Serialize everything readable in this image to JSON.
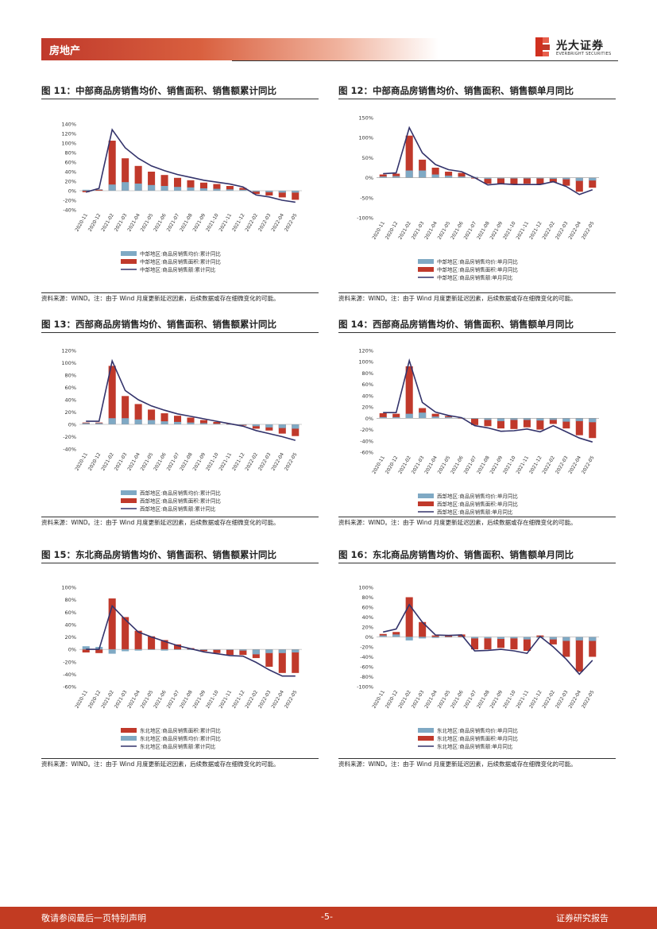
{
  "header": {
    "section": "房地产",
    "brand_cn": "光大证券",
    "brand_en": "EVERBRIGHT SECURITIES"
  },
  "colors": {
    "bar_a": "#7fa9c4",
    "bar_b": "#c0392b",
    "line": "#33336b",
    "footer": "#c23b22"
  },
  "footer": {
    "left": "敬请参阅最后一页特别声明",
    "page": "-5-",
    "right": "证券研究报告"
  },
  "source_note": "资料来源：WIND。注：由于 Wind 月度更新延迟因素，后续数据或存在细微变化的可能。",
  "figures": [
    {
      "title": "图 11：中部商品房销售均价、销售面积、销售额累计同比",
      "chart_data": {
        "type": "bar",
        "categories": [
          "2020-11",
          "2020-12",
          "2021-02",
          "2021-03",
          "2021-04",
          "2021-05",
          "2021-06",
          "2021-07",
          "2021-08",
          "2021-09",
          "2021-10",
          "2021-11",
          "2021-12",
          "2022-02",
          "2022-03",
          "2022-04",
          "2022-05"
        ],
        "ylim": [
          -40,
          140
        ],
        "ticks": [
          "140%",
          "120%",
          "100%",
          "80%",
          "60%",
          "40%",
          "20%",
          "0%",
          "-20%",
          "-40%"
        ],
        "series": [
          {
            "name": "中部地区:商品房销售均价:累计同比",
            "kind": "bar",
            "values": [
              2,
              3,
              13,
              18,
              15,
              12,
              10,
              8,
              7,
              5,
              4,
              3,
              2,
              -2,
              -3,
              -4,
              -4
            ]
          },
          {
            "name": "中部地区:商品房销售面积:累计同比",
            "kind": "bar",
            "values": [
              -3,
              2,
              105,
              68,
              52,
              40,
              33,
              27,
              22,
              17,
              14,
              10,
              6,
              -7,
              -10,
              -14,
              -19
            ]
          },
          {
            "name": "中部地区:商品房销售额:累计同比",
            "kind": "line",
            "values": [
              -3,
              5,
              128,
              90,
              68,
              52,
              42,
              34,
              28,
              22,
              18,
              14,
              8,
              -9,
              -13,
              -20,
              -24
            ]
          }
        ]
      }
    },
    {
      "title": "图 12：中部商品房销售均价、销售面积、销售额单月同比",
      "chart_data": {
        "type": "bar",
        "categories": [
          "2020-11",
          "2020-12",
          "2021-02",
          "2021-03",
          "2021-04",
          "2021-05",
          "2021-06",
          "2021-07",
          "2021-08",
          "2021-09",
          "2021-10",
          "2021-11",
          "2021-12",
          "2022-02",
          "2022-03",
          "2022-04",
          "2022-05"
        ],
        "ylim": [
          -100,
          150
        ],
        "ticks": [
          "150%",
          "100%",
          "50%",
          "0%",
          "-50%",
          "-100%"
        ],
        "series": [
          {
            "name": "中部地区:商品房销售均价:单月同比",
            "kind": "bar",
            "values": [
              3,
              4,
              18,
              18,
              8,
              5,
              3,
              2,
              -3,
              -2,
              -2,
              -2,
              -2,
              -3,
              -4,
              -8,
              -7
            ]
          },
          {
            "name": "中部地区:商品房销售面积:单月同比",
            "kind": "bar",
            "values": [
              8,
              10,
              105,
              45,
              25,
              15,
              12,
              -2,
              -15,
              -15,
              -17,
              -15,
              -17,
              -12,
              -20,
              -35,
              -25
            ]
          },
          {
            "name": "中部地区:商品房销售额:单月同比",
            "kind": "line",
            "values": [
              10,
              12,
              125,
              62,
              33,
              20,
              15,
              0,
              -18,
              -15,
              -17,
              -17,
              -17,
              -10,
              -22,
              -42,
              -30
            ]
          }
        ]
      }
    },
    {
      "title": "图 13：西部商品房销售均价、销售面积、销售额累计同比",
      "chart_data": {
        "type": "bar",
        "categories": [
          "2020-11",
          "2020-12",
          "2021-02",
          "2021-03",
          "2021-04",
          "2021-05",
          "2021-06",
          "2021-07",
          "2021-08",
          "2021-09",
          "2021-10",
          "2021-11",
          "2021-12",
          "2022-02",
          "2022-03",
          "2022-04",
          "2022-05"
        ],
        "ylim": [
          -40,
          120
        ],
        "ticks": [
          "120%",
          "100%",
          "80%",
          "60%",
          "40%",
          "20%",
          "0%",
          "-20%",
          "-40%"
        ],
        "series": [
          {
            "name": "西部地区:商品房销售均价:累计同比",
            "kind": "bar",
            "values": [
              2,
              2,
              10,
              10,
              8,
              7,
              5,
              4,
              3,
              2,
              1,
              0,
              -1,
              -3,
              -5,
              -6,
              -7
            ]
          },
          {
            "name": "西部地区:商品房销售面积:累计同比",
            "kind": "bar",
            "values": [
              3,
              3,
              95,
              46,
              33,
              24,
              18,
              14,
              11,
              7,
              4,
              1,
              -2,
              -7,
              -10,
              -15,
              -19
            ]
          },
          {
            "name": "西部地区:商品房销售额:累计同比",
            "kind": "line",
            "values": [
              5,
              5,
              103,
              55,
              40,
              30,
              23,
              17,
              13,
              9,
              5,
              1,
              -3,
              -10,
              -15,
              -20,
              -26
            ]
          }
        ]
      }
    },
    {
      "title": "图 14：西部商品房销售均价、销售面积、销售额单月同比",
      "chart_data": {
        "type": "bar",
        "categories": [
          "2020-11",
          "2020-12",
          "2021-02",
          "2021-03",
          "2021-04",
          "2021-05",
          "2021-06",
          "2021-07",
          "2021-08",
          "2021-09",
          "2021-10",
          "2021-11",
          "2021-12",
          "2022-02",
          "2022-03",
          "2022-04",
          "2022-05"
        ],
        "ylim": [
          -60,
          120
        ],
        "ticks": [
          "120%",
          "100%",
          "80%",
          "60%",
          "40%",
          "20%",
          "0%",
          "-20%",
          "-40%",
          "-60%"
        ],
        "series": [
          {
            "name": "西部地区:商品房销售均价:单月同比",
            "kind": "bar",
            "values": [
              2,
              2,
              8,
              10,
              3,
              2,
              1,
              -1,
              -3,
              -5,
              -3,
              -3,
              -4,
              -3,
              -6,
              -5,
              -7
            ]
          },
          {
            "name": "西部地区:商品房销售面积:单月同比",
            "kind": "bar",
            "values": [
              9,
              8,
              92,
              18,
              8,
              4,
              0,
              -12,
              -14,
              -18,
              -19,
              -16,
              -20,
              -10,
              -18,
              -30,
              -35
            ]
          },
          {
            "name": "西部地区:商品房销售额:单月同比",
            "kind": "line",
            "values": [
              10,
              10,
              102,
              28,
              11,
              5,
              1,
              -13,
              -17,
              -23,
              -22,
              -19,
              -24,
              -13,
              -24,
              -35,
              -42
            ]
          }
        ]
      }
    },
    {
      "title": "图 15：东北商品房销售均价、销售面积、销售额累计同比",
      "chart_data": {
        "type": "bar",
        "categories": [
          "2020-11",
          "2020-12",
          "2021-02",
          "2021-03",
          "2021-04",
          "2021-05",
          "2021-06",
          "2021-07",
          "2021-08",
          "2021-09",
          "2021-10",
          "2021-11",
          "2021-12",
          "2022-02",
          "2022-03",
          "2022-04",
          "2022-05"
        ],
        "ylim": [
          -60,
          100
        ],
        "ticks": [
          "100%",
          "80%",
          "60%",
          "40%",
          "20%",
          "0%",
          "-20%",
          "-40%",
          "-60%"
        ],
        "series": [
          {
            "name": "东北地区:商品房销售面积:累计同比",
            "kind": "bar",
            "values": [
              -5,
              -6,
              82,
              52,
              30,
              21,
              15,
              8,
              2,
              -3,
              -6,
              -9,
              -9,
              -14,
              -28,
              -38,
              -38
            ]
          },
          {
            "name": "东北地区:商品房销售均价:累计同比",
            "kind": "bar",
            "values": [
              5,
              4,
              -7,
              -3,
              -2,
              -1,
              -2,
              -1,
              -1,
              -1,
              -1,
              -1,
              -2,
              -8,
              -6,
              -6,
              -5
            ]
          },
          {
            "name": "东北地区:商品房销售额:累计同比",
            "kind": "line",
            "values": [
              0,
              0,
              70,
              48,
              28,
              20,
              13,
              6,
              1,
              -4,
              -7,
              -10,
              -11,
              -21,
              -33,
              -43,
              -43
            ]
          }
        ]
      }
    },
    {
      "title": "图 16：东北商品房销售均价、销售面积、销售额单月同比",
      "chart_data": {
        "type": "bar",
        "categories": [
          "2020-11",
          "2020-12",
          "2021-02",
          "2021-03",
          "2021-04",
          "2021-05",
          "2021-06",
          "2021-07",
          "2021-08",
          "2021-09",
          "2021-10",
          "2021-11",
          "2021-12",
          "2022-02",
          "2022-03",
          "2022-04",
          "2022-05"
        ],
        "ylim": [
          -100,
          100
        ],
        "ticks": [
          "100%",
          "80%",
          "60%",
          "40%",
          "20%",
          "0%",
          "-20%",
          "-40%",
          "-60%",
          "-80%",
          "-100%"
        ],
        "series": [
          {
            "name": "东北地区:商品房销售均价:单月同比",
            "kind": "bar",
            "values": [
              3,
              5,
              -7,
              -3,
              -2,
              -1,
              -1,
              -3,
              -3,
              -4,
              -3,
              -5,
              -2,
              -5,
              -8,
              -7,
              -8
            ]
          },
          {
            "name": "东北地区:商品房销售面积:单月同比",
            "kind": "bar",
            "values": [
              6,
              10,
              80,
              30,
              3,
              3,
              5,
              -25,
              -25,
              -22,
              -25,
              -28,
              3,
              -15,
              -40,
              -70,
              -40
            ]
          },
          {
            "name": "东北地区:商品房销售额:单月同比",
            "kind": "line",
            "values": [
              10,
              16,
              65,
              30,
              4,
              3,
              4,
              -28,
              -27,
              -25,
              -28,
              -33,
              1,
              -20,
              -45,
              -75,
              -47
            ]
          }
        ]
      }
    }
  ]
}
